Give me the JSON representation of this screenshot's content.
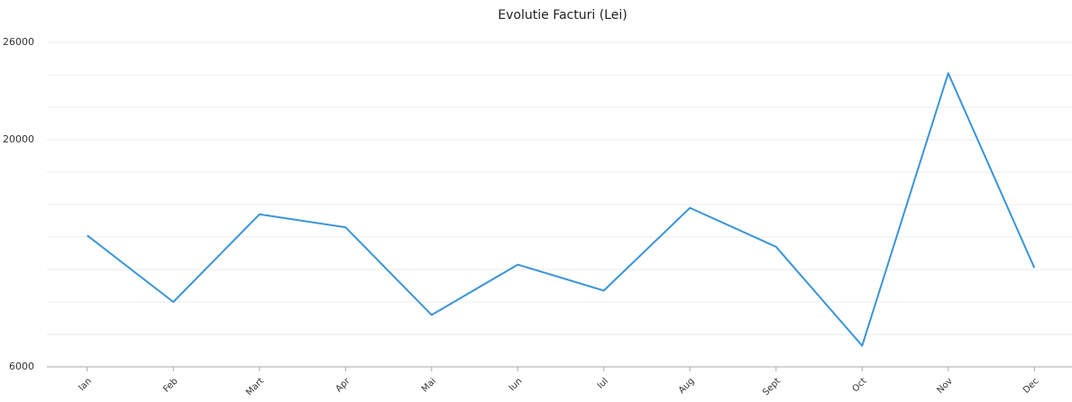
{
  "chart_data": {
    "type": "line",
    "title": "Evolutie Facturi (Lei)",
    "categories": [
      "Ian",
      "Feb",
      "Mart",
      "Apr",
      "Mai",
      "Iun",
      "Iul",
      "Aug",
      "Sept",
      "Oct",
      "Nov",
      "Dec"
    ],
    "series": [
      {
        "name": "Facturi",
        "color": "#3a95d8",
        "values": [
          14100,
          10000,
          15400,
          14600,
          9200,
          12300,
          10700,
          15800,
          13400,
          7300,
          24100,
          12100
        ]
      }
    ],
    "ylim": [
      6000,
      26000
    ],
    "yticks": [
      6000,
      20000,
      26000
    ],
    "grid_lines": [
      6000,
      8000,
      10000,
      12000,
      14000,
      16000,
      18000,
      20000,
      22000,
      24000,
      26000
    ],
    "grid": true
  }
}
